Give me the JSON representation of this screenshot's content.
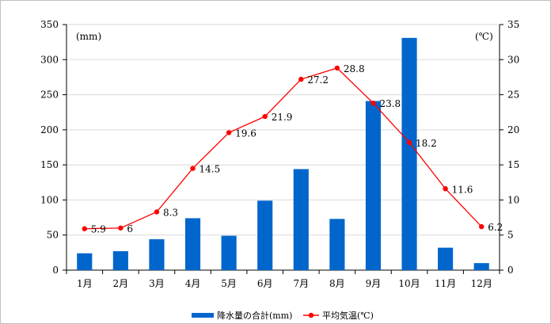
{
  "chart_data": {
    "type": "bar",
    "categories": [
      "1月",
      "2月",
      "3月",
      "4月",
      "5月",
      "6月",
      "7月",
      "8月",
      "9月",
      "10月",
      "11月",
      "12月"
    ],
    "series": [
      {
        "name": "降水量の合計(mm)",
        "type": "bar",
        "axis": "left",
        "color": "#0066cc",
        "values": [
          24,
          27,
          44,
          74,
          49,
          99,
          144,
          73,
          241,
          331,
          32,
          10
        ]
      },
      {
        "name": "平均気温(℃)",
        "type": "line",
        "axis": "right",
        "color": "#ff0000",
        "values": [
          5.9,
          6,
          8.3,
          14.5,
          19.6,
          21.9,
          27.2,
          28.8,
          23.8,
          18.2,
          11.6,
          6.2
        ],
        "labels": [
          "5.9",
          "6",
          "8.3",
          "14.5",
          "19.6",
          "21.9",
          "27.2",
          "28.8",
          "23.8",
          "18.2",
          "11.6",
          "6.2"
        ]
      }
    ],
    "y_left": {
      "unit": "(mm)",
      "ylim": [
        0,
        350
      ],
      "ticks": [
        0,
        50,
        100,
        150,
        200,
        250,
        300,
        350
      ]
    },
    "y_right": {
      "unit": "(℃)",
      "ylim": [
        0,
        35
      ],
      "ticks": [
        0,
        5,
        10,
        15,
        20,
        25,
        30,
        35
      ]
    },
    "grid": true,
    "legend_position": "bottom"
  }
}
